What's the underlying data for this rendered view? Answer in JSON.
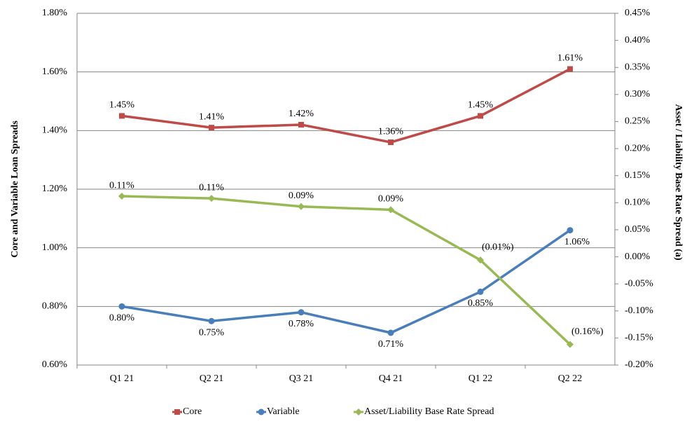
{
  "chart_data": {
    "type": "line",
    "y_label": "Core and Variable Loan Spreads",
    "y2_label": "Asset / Liability Base Rate Spread (a)",
    "categories": [
      "Q1 21",
      "Q2 21",
      "Q3 21",
      "Q4 21",
      "Q1 22",
      "Q2 22"
    ],
    "ylim": [
      0.6,
      1.8
    ],
    "yticks": [
      {
        "value": 0.6,
        "label": "0.60%"
      },
      {
        "value": 0.8,
        "label": "0.80%"
      },
      {
        "value": 1.0,
        "label": "1.00%"
      },
      {
        "value": 1.2,
        "label": "1.20%"
      },
      {
        "value": 1.4,
        "label": "1.40%"
      },
      {
        "value": 1.6,
        "label": "1.60%"
      },
      {
        "value": 1.8,
        "label": "1.80%"
      }
    ],
    "y2lim": [
      -0.2,
      0.45
    ],
    "y2ticks": [
      {
        "value": -0.2,
        "label": "-0.20%"
      },
      {
        "value": -0.15,
        "label": "-0.15%"
      },
      {
        "value": -0.1,
        "label": "-0.10%"
      },
      {
        "value": -0.05,
        "label": "-0.05%"
      },
      {
        "value": 0,
        "label": "0.00%"
      },
      {
        "value": 0.05,
        "label": "0.05%"
      },
      {
        "value": 0.1,
        "label": "0.10%"
      },
      {
        "value": 0.15,
        "label": "0.15%"
      },
      {
        "value": 0.2,
        "label": "0.20%"
      },
      {
        "value": 0.25,
        "label": "0.25%"
      },
      {
        "value": 0.3,
        "label": "0.30%"
      },
      {
        "value": 0.35,
        "label": "0.35%"
      },
      {
        "value": 0.4,
        "label": "0.40%"
      },
      {
        "value": 0.45,
        "label": "0.45%"
      }
    ],
    "grid": true,
    "legend": "bottom",
    "series": [
      {
        "name": "Core",
        "color": "#be4b48",
        "marker": "square",
        "values": [
          1.45,
          1.41,
          1.42,
          1.36,
          1.45,
          1.61
        ],
        "value_labels": [
          "1.45%",
          "1.41%",
          "1.42%",
          "1.36%",
          "1.45%",
          "1.61%"
        ]
      },
      {
        "name": "Variable",
        "color": "#4a7ebb",
        "marker": "circle",
        "values": [
          0.8,
          0.75,
          0.78,
          0.71,
          0.85,
          1.06
        ],
        "value_labels": [
          "0.80%",
          "0.75%",
          "0.78%",
          "0.71%",
          "0.85%",
          "1.06%"
        ]
      },
      {
        "name": "Asset/Liability Base Rate Spread",
        "color": "#98b954",
        "marker": "diamond",
        "axis": "y2",
        "values": [
          0.112,
          0.108,
          0.093,
          0.087,
          -0.006,
          -0.162
        ],
        "value_labels": [
          "0.11%",
          "0.11%",
          "0.09%",
          "0.09%",
          "(0.01%)",
          "(0.16%)"
        ]
      }
    ]
  }
}
